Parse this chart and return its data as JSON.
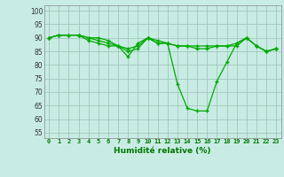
{
  "xlabel": "Humidité relative (%)",
  "bg_color": "#c8ece4",
  "grid_color": "#a0c8b8",
  "line_color": "#00aa00",
  "xlim": [
    -0.5,
    23.5
  ],
  "ylim": [
    53,
    102
  ],
  "yticks": [
    55,
    60,
    65,
    70,
    75,
    80,
    85,
    90,
    95,
    100
  ],
  "xticks": [
    0,
    1,
    2,
    3,
    4,
    5,
    6,
    7,
    8,
    9,
    10,
    11,
    12,
    13,
    14,
    15,
    16,
    17,
    18,
    19,
    20,
    21,
    22,
    23
  ],
  "series1": [
    90,
    91,
    91,
    91,
    90,
    89,
    88,
    87,
    86,
    87,
    90,
    89,
    88,
    87,
    87,
    86,
    86,
    87,
    87,
    88,
    90,
    87,
    85,
    86
  ],
  "series2": [
    90,
    91,
    91,
    91,
    89,
    88,
    87,
    87,
    85,
    86,
    90,
    88,
    88,
    73,
    64,
    63,
    63,
    74,
    81,
    88,
    90,
    87,
    85,
    86
  ],
  "series3": [
    90,
    91,
    91,
    91,
    90,
    90,
    89,
    87,
    83,
    88,
    90,
    88,
    88,
    87,
    87,
    87,
    87,
    87,
    87,
    87,
    90,
    87,
    85,
    86
  ]
}
